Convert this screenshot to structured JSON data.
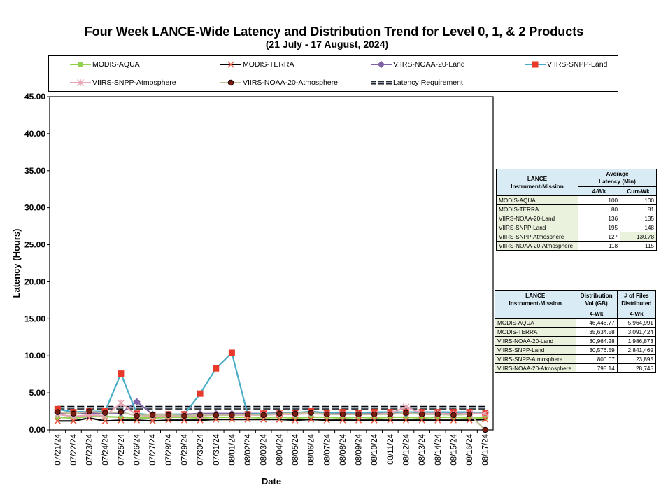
{
  "title": "Four Week LANCE-Wide Latency and Distribution Trend for Level 0, 1, & 2 Products",
  "subtitle": "(21 July   - 17 August, 2024)",
  "legend": [
    {
      "name": "MODIS-AQUA",
      "color": "#92d050",
      "marker": "circle"
    },
    {
      "name": "MODIS-TERRA",
      "color": "#000000",
      "marker": "x"
    },
    {
      "name": "VIIRS-NOAA-20-Land",
      "color": "#7f63a6",
      "marker": "diamond"
    },
    {
      "name": "VIIRS-SNPP-Land",
      "color": "#4bacc6",
      "marker": "square"
    },
    {
      "name": "VIIRS-SNPP-Atmosphere",
      "color": "#e6a5b4",
      "marker": "star"
    },
    {
      "name": "VIIRS-NOAA-20-Atmosphere",
      "color": "#c4bd97",
      "marker": "dot"
    },
    {
      "name": "Latency Requirement",
      "color": "#1f3864",
      "marker": "dashed"
    }
  ],
  "chart_data": {
    "type": "line",
    "xlabel": "Date",
    "ylabel": "Latency (Hours)",
    "ylim": [
      0,
      45
    ],
    "yticks": [
      "0.00",
      "5.00",
      "10.00",
      "15.00",
      "20.00",
      "25.00",
      "30.00",
      "35.00",
      "40.00",
      "45.00"
    ],
    "categories": [
      "07/21/24",
      "07/22/24",
      "07/23/24",
      "07/24/24",
      "07/25/24",
      "07/26/24",
      "07/27/24",
      "07/28/24",
      "07/29/24",
      "07/30/24",
      "07/31/24",
      "08/01/24",
      "08/02/24",
      "08/03/24",
      "08/04/24",
      "08/05/24",
      "08/06/24",
      "08/07/24",
      "08/08/24",
      "08/09/24",
      "08/10/24",
      "08/11/24",
      "08/12/24",
      "08/13/24",
      "08/14/24",
      "08/15/24",
      "08/16/24",
      "08/17/24"
    ],
    "series": [
      {
        "name": "Latency Requirement",
        "values": [
          3,
          3,
          3,
          3,
          3,
          3,
          3,
          3,
          3,
          3,
          3,
          3,
          3,
          3,
          3,
          3,
          3,
          3,
          3,
          3,
          3,
          3,
          3,
          3,
          3,
          3,
          3,
          3
        ]
      },
      {
        "name": "MODIS-AQUA",
        "values": [
          1.7,
          1.6,
          1.8,
          1.8,
          1.7,
          1.6,
          1.6,
          1.7,
          1.7,
          1.6,
          1.7,
          1.7,
          1.7,
          1.6,
          1.7,
          1.6,
          1.7,
          1.7,
          1.6,
          1.7,
          1.6,
          1.7,
          1.7,
          1.6,
          1.7,
          1.7,
          1.6,
          1.6
        ]
      },
      {
        "name": "MODIS-TERRA",
        "values": [
          1.2,
          1.2,
          1.6,
          1.2,
          1.3,
          1.3,
          1.2,
          1.3,
          1.3,
          1.3,
          1.4,
          1.4,
          1.4,
          1.4,
          1.4,
          1.3,
          1.4,
          1.3,
          1.3,
          1.3,
          1.3,
          1.3,
          1.3,
          1.3,
          1.3,
          1.3,
          1.3,
          1.4
        ]
      },
      {
        "name": "VIIRS-NOAA-20-Land",
        "values": [
          2.3,
          2.2,
          2.3,
          2.2,
          2.3,
          3.8,
          2.1,
          2.1,
          2.1,
          2.2,
          2.2,
          2.2,
          2.2,
          2.2,
          2.3,
          2.3,
          2.3,
          2.2,
          2.2,
          2.2,
          2.2,
          2.2,
          2.2,
          2.2,
          2.2,
          2.2,
          2.2,
          2.3
        ]
      },
      {
        "name": "VIIRS-SNPP-Land",
        "values": [
          2.8,
          2.4,
          2.5,
          2.5,
          7.6,
          2.2,
          2.0,
          2.1,
          2.1,
          4.9,
          8.3,
          10.4,
          2.1,
          2.2,
          2.2,
          2.3,
          2.5,
          2.3,
          2.4,
          2.3,
          2.4,
          2.4,
          2.4,
          2.4,
          2.4,
          2.4,
          2.4,
          2.3
        ]
      },
      {
        "name": "VIIRS-SNPP-Atmosphere",
        "values": [
          2.1,
          1.8,
          2.0,
          1.9,
          3.6,
          2.0,
          1.8,
          1.9,
          1.9,
          1.9,
          2.0,
          2.0,
          2.0,
          2.0,
          2.1,
          2.1,
          2.2,
          2.1,
          2.1,
          2.1,
          2.1,
          2.2,
          3.1,
          2.2,
          2.2,
          2.1,
          2.2,
          2.2
        ]
      },
      {
        "name": "VIIRS-NOAA-20-Atmosphere",
        "values": [
          2.4,
          2.2,
          2.5,
          2.3,
          2.4,
          1.9,
          2.0,
          2.0,
          1.9,
          2.0,
          2.0,
          2.0,
          2.1,
          2.0,
          2.2,
          2.2,
          2.3,
          2.1,
          2.1,
          2.1,
          2.1,
          2.1,
          2.3,
          2.1,
          2.1,
          2.0,
          2.1,
          0.0
        ]
      }
    ]
  },
  "latency_table": {
    "col1_header": "LANCE\nInstrument-Mission",
    "col2_header": "Average\nLatency (Min)",
    "sub1": "4-Wk",
    "sub2": "Curr-Wk",
    "rows": [
      {
        "name": "MODIS-AQUA",
        "a": "100",
        "b": "100"
      },
      {
        "name": "MODIS-TERRA",
        "a": "80",
        "b": "81"
      },
      {
        "name": "VIIRS-NOAA-20-Land",
        "a": "136",
        "b": "135"
      },
      {
        "name": "VIIRS-SNPP-Land",
        "a": "195",
        "b": "148"
      },
      {
        "name": "VIIRS-SNPP-Atmosphere",
        "a": "127",
        "b": "130.78"
      },
      {
        "name": "VIIRS-NOAA-20-Atmosphere",
        "a": "118",
        "b": "115"
      }
    ]
  },
  "dist_table": {
    "col1_header": "LANCE\nInstrument-Mission",
    "col2_header": "Distribution\nVol (GB)",
    "col3_header": "# of Files\nDistributed",
    "sub1": "4-Wk",
    "sub2": "4-Wk",
    "rows": [
      {
        "name": "MODIS-AQUA",
        "a": "46,446.77",
        "b": "5,964,991"
      },
      {
        "name": "MODIS-TERRA",
        "a": "35,634.58",
        "b": "3,091,424"
      },
      {
        "name": "VIIRS-NOAA-20-Land",
        "a": "30,964.28",
        "b": "1,986,873"
      },
      {
        "name": "VIIRS-SNPP-Land",
        "a": "30,576.59",
        "b": "2,841,469"
      },
      {
        "name": "VIIRS-SNPP-Atmosphere",
        "a": "800.07",
        "b": "23,895"
      },
      {
        "name": "VIIRS-NOAA-20-Atmosphere",
        "a": "795.14",
        "b": "28,745"
      }
    ]
  }
}
